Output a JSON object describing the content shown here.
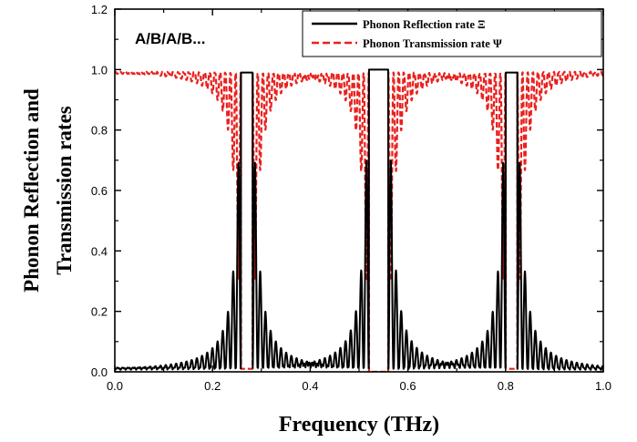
{
  "chart_data": {
    "type": "line",
    "title": "",
    "xlabel": "Frequency (THz)",
    "ylabel_lines": [
      "Phonon Reflection and",
      "Transmission rates"
    ],
    "annotation": "A/B/A/B...",
    "xlim": [
      0.0,
      1.0
    ],
    "ylim": [
      0.0,
      1.2
    ],
    "x_ticks": [
      "0.0",
      "0.2",
      "0.4",
      "0.6",
      "0.8",
      "1.0"
    ],
    "y_ticks": [
      "0.0",
      "0.2",
      "0.4",
      "0.6",
      "0.8",
      "1.0",
      "1.2"
    ],
    "grid": false,
    "legend_position": "top-right",
    "band_gaps": [
      {
        "center": 0.27,
        "width": 0.012,
        "peak": 0.99
      },
      {
        "center": 0.54,
        "width": 0.02,
        "peak": 1.0
      },
      {
        "center": 0.812,
        "width": 0.012,
        "peak": 0.99
      }
    ],
    "series": [
      {
        "name": "Phonon Reflection rate Ξ",
        "color": "#000000",
        "style": "solid"
      },
      {
        "name": "Phonon Transmission rate Ψ",
        "color": "#e8211e",
        "style": "dashed"
      }
    ],
    "points": [
      {
        "x": 0.0,
        "reflection": 0.01,
        "transmission": 0.99
      },
      {
        "x": 0.15,
        "reflection": 0.05,
        "transmission": 0.95
      },
      {
        "x": 0.2,
        "reflection": 0.1,
        "transmission": 0.9
      },
      {
        "x": 0.23,
        "reflection": 0.2,
        "transmission": 0.8
      },
      {
        "x": 0.245,
        "reflection": 0.39,
        "transmission": 0.61
      },
      {
        "x": 0.258,
        "reflection": 0.95,
        "transmission": 0.05
      },
      {
        "x": 0.27,
        "reflection": 0.99,
        "transmission": 0.01
      },
      {
        "x": 0.282,
        "reflection": 0.95,
        "transmission": 0.05
      },
      {
        "x": 0.295,
        "reflection": 0.27,
        "transmission": 0.73
      },
      {
        "x": 0.35,
        "reflection": 0.02,
        "transmission": 0.98
      },
      {
        "x": 0.45,
        "reflection": 0.05,
        "transmission": 0.95
      },
      {
        "x": 0.512,
        "reflection": 0.48,
        "transmission": 0.52
      },
      {
        "x": 0.525,
        "reflection": 1.0,
        "transmission": 0.0
      },
      {
        "x": 0.54,
        "reflection": 1.0,
        "transmission": 0.0
      },
      {
        "x": 0.555,
        "reflection": 1.0,
        "transmission": 0.0
      },
      {
        "x": 0.568,
        "reflection": 0.49,
        "transmission": 0.51
      },
      {
        "x": 0.65,
        "reflection": 0.03,
        "transmission": 0.97
      },
      {
        "x": 0.75,
        "reflection": 0.03,
        "transmission": 0.97
      },
      {
        "x": 0.787,
        "reflection": 0.32,
        "transmission": 0.68
      },
      {
        "x": 0.8,
        "reflection": 0.95,
        "transmission": 0.05
      },
      {
        "x": 0.812,
        "reflection": 0.99,
        "transmission": 0.01
      },
      {
        "x": 0.824,
        "reflection": 0.95,
        "transmission": 0.05
      },
      {
        "x": 0.837,
        "reflection": 0.36,
        "transmission": 0.64
      },
      {
        "x": 0.9,
        "reflection": 0.04,
        "transmission": 0.96
      },
      {
        "x": 1.0,
        "reflection": 0.02,
        "transmission": 0.98
      }
    ]
  }
}
